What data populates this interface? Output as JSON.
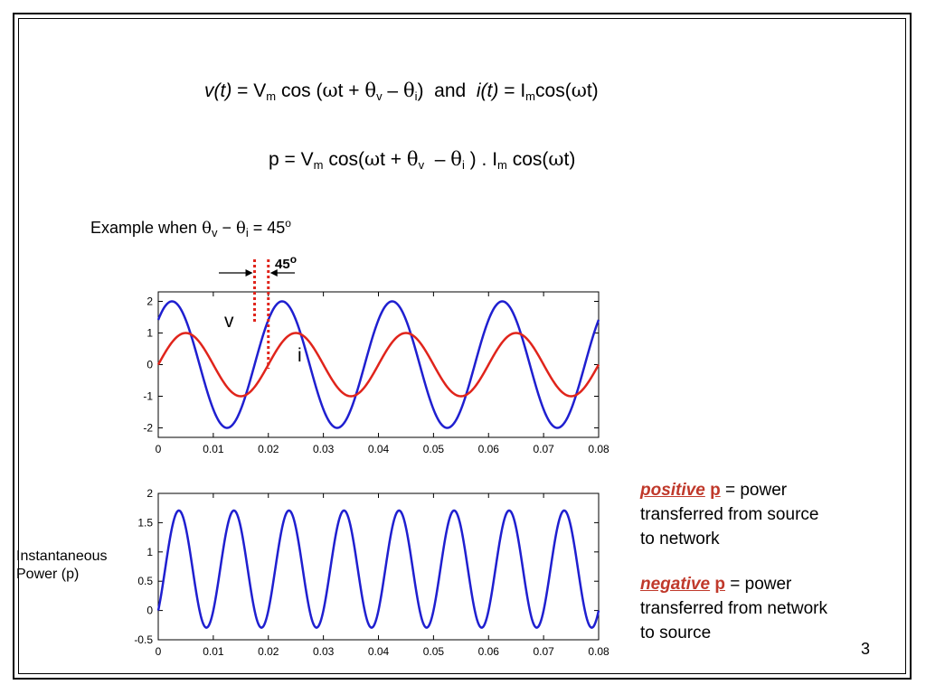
{
  "equations": {
    "eq1": {
      "v_t": "v(t)",
      "eq": "=",
      "Vm": "V",
      "Vm_sub": "m",
      "cos": "cos (",
      "omega": "ω",
      "t_plus": "t +",
      "theta_v": "θ",
      "v_sub": "v",
      "minus": "–",
      "theta_i": "θ",
      "i_sub": "i",
      "close": ")",
      "and": "and",
      "i_t": "i(t)",
      "eq_b": "=",
      "Im": "I",
      "Im_sub": "m",
      "cos2": "cos(",
      "omega2": "ω",
      "t_close": "t)"
    },
    "eq2": {
      "p": "p =",
      "Vm": "V",
      "Vm_sub": "m",
      "cos": "cos(",
      "omega": "ω",
      "t_plus": "t +",
      "theta_v": "θ",
      "v_sub": "v",
      "minus": "–",
      "theta_i": "θ",
      "i_sub": "i",
      "close_dot": ") .",
      "Im": "I",
      "Im_sub": "m",
      "cos2": "cos(",
      "omega2": "ω",
      "t_close": "t)"
    }
  },
  "example": {
    "prefix": "Example when",
    "theta_v": "θ",
    "v_sub": "v",
    "minus": "−",
    "theta_i": "θ",
    "i_sub": "i",
    "equals": "= 45",
    "deg": "o"
  },
  "phase_annotation": {
    "value": "45",
    "deg": "o"
  },
  "curve_labels": {
    "v": "v",
    "i": "i"
  },
  "power_ylabel": {
    "line1": "Instantaneous",
    "line2": "Power (p)"
  },
  "notes": {
    "positive": {
      "word": "positive",
      "p": "p",
      "rest": "= power",
      "line2": "transferred from source",
      "line3": "to network"
    },
    "negative": {
      "word": "negative",
      "p": "p",
      "rest": "= power",
      "line2": "transferred from network",
      "line3": "to source"
    }
  },
  "page_number": "3",
  "colors": {
    "v": "#1f1fd0",
    "i": "#e0241b",
    "p": "#1f1fd0",
    "marker": "#e0241b",
    "highlight": "#c0392b"
  },
  "chart_data": [
    {
      "type": "line",
      "xlim": [
        0,
        0.08
      ],
      "ylim": [
        -2.3,
        2.3
      ],
      "x_ticks": [
        "0",
        "0.01",
        "0.02",
        "0.03",
        "0.04",
        "0.05",
        "0.06",
        "0.07",
        "0.08"
      ],
      "y_ticks": [
        "2",
        "1",
        "0",
        "-1",
        "-2"
      ],
      "y_tick_values": [
        2,
        1,
        0,
        -1,
        -2
      ],
      "x_range": [
        0,
        0.08
      ],
      "series": [
        {
          "name": "v",
          "function": "2*cos(2*pi*50*t - pi/4)",
          "amplitude": 2,
          "frequency_hz": 50,
          "phase_deg": -45
        },
        {
          "name": "i",
          "function": "cos(2*pi*50*t - pi/2)",
          "amplitude": 1,
          "frequency_hz": 50,
          "phase_deg": -90
        }
      ],
      "phase_difference_deg": 45
    },
    {
      "type": "line",
      "xlim": [
        0,
        0.08
      ],
      "ylim": [
        -0.5,
        2
      ],
      "x_ticks": [
        "0",
        "0.01",
        "0.02",
        "0.03",
        "0.04",
        "0.05",
        "0.06",
        "0.07",
        "0.08"
      ],
      "y_ticks": [
        "2",
        "1.5",
        "1",
        "0.5",
        "0",
        "-0.5"
      ],
      "y_tick_values": [
        2,
        1.5,
        1,
        0.5,
        0,
        -0.5
      ],
      "x_range": [
        0,
        0.08
      ],
      "series": [
        {
          "name": "p",
          "function": "v(t)*i(t)",
          "max": 1.707,
          "min": -0.293,
          "mean": 0.707
        }
      ]
    }
  ]
}
